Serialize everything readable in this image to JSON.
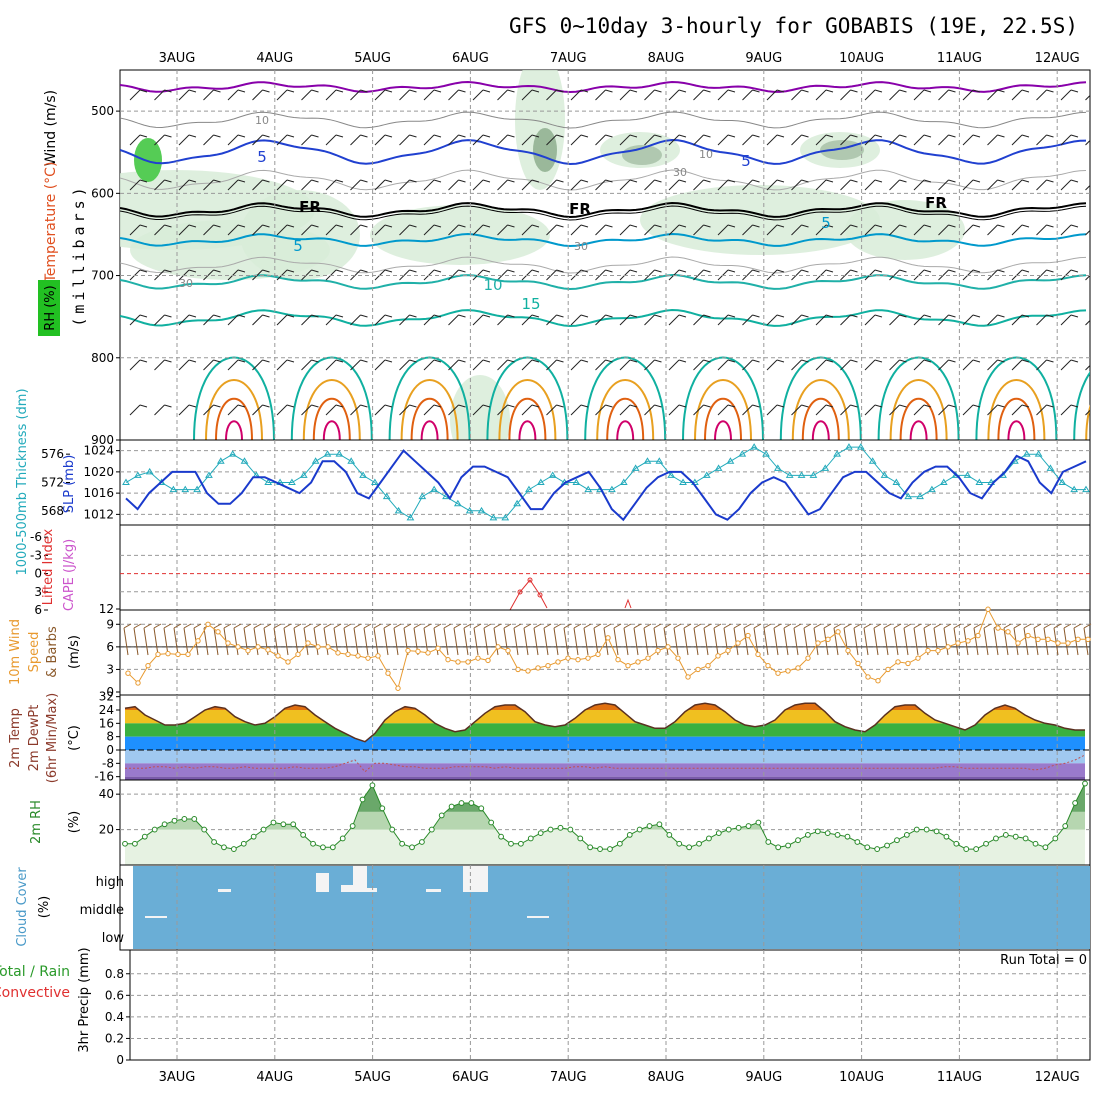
{
  "title": "GFS 0~10day 3-hourly for GOBABIS (19E, 22.5S)",
  "dates": [
    "3AUG",
    "4AUG",
    "5AUG",
    "6AUG",
    "7AUG",
    "8AUG",
    "9AUG",
    "10AUG",
    "11AUG",
    "12AUG"
  ],
  "labels": {
    "upper": {
      "rh": "RH (%)",
      "temp": "Temperature (°C)",
      "wind": "Wind (m/s)",
      "axis": "(millibars)"
    },
    "thick": {
      "thick": "1000-500mb Thickness (dm)",
      "slp": "SLP (mb)"
    },
    "li": {
      "li": "Lifted Index",
      "cape": "CAPE (J/kg)"
    },
    "wind10": {
      "l1": "10m Wind",
      "l2": "Speed",
      "l3": "& Barbs",
      "unit": "(m/s)"
    },
    "temp2m": {
      "l1": "2m Temp",
      "l2": "2m DewPt",
      "l3": "(6hr Min/Max)",
      "unit": "(°C)"
    },
    "rh2m": {
      "l1": "2m RH",
      "unit": "(%)"
    },
    "cloud": {
      "l1": "Cloud Cover",
      "unit": "(%)"
    },
    "precip": {
      "l1": "Total / Rain",
      "l2": "Convective",
      "l3": "3hr Precip (mm)"
    }
  },
  "upper_contour_labels": [
    "10",
    "5",
    "10",
    "30",
    "FR",
    "FR",
    "5",
    "30",
    "FR",
    "5",
    "10",
    "30",
    "15",
    "5"
  ],
  "colors": {
    "temp_warm": "#e8a020",
    "temp_hot": "#e06010",
    "temp_vhot": "#d0006a",
    "temp_cool": "#10b0a0",
    "temp_cold": "#0099cc",
    "temp_vcold": "#2040d0",
    "temp_vvcold": "#8800aa",
    "slp": "#1a3acc",
    "thick": "#22aabb",
    "wind": "#e89a30",
    "rh": "#2a8a2a",
    "cloud": "#6aaed6",
    "li": "#e03030"
  },
  "chart_data": [
    {
      "type": "line",
      "panel": "upper_air_cross_section",
      "yaxis": "pressure (millibars)",
      "ylim": [
        900,
        450
      ],
      "yticks": [
        500,
        600,
        700,
        800,
        900
      ],
      "isotherms_c": [
        -15,
        -10,
        -5,
        0,
        5,
        10,
        15,
        20,
        25,
        30
      ],
      "rh_shading_pct": [
        70,
        80,
        90
      ]
    },
    {
      "type": "line",
      "panel": "thickness_slp",
      "series": [
        {
          "name": "1000-500mb Thickness (dm)",
          "ylim": [
            566,
            578
          ],
          "yticks": [
            568,
            572,
            576
          ],
          "values": [
            572,
            573,
            573.5,
            572,
            571,
            571,
            571,
            573,
            575,
            576,
            575,
            573,
            572,
            572,
            572,
            573,
            575,
            576,
            576,
            575,
            573,
            572,
            570,
            568,
            567,
            570,
            571,
            570,
            569,
            568,
            568,
            567,
            567,
            569,
            571,
            572,
            573,
            572,
            572,
            571,
            571,
            571,
            572,
            574,
            575,
            575,
            573,
            572,
            572,
            573,
            574,
            575,
            576,
            577,
            576,
            574,
            573,
            573,
            573,
            574,
            576,
            577,
            577,
            575,
            573,
            572,
            570,
            570,
            571,
            572,
            573,
            573,
            572,
            572,
            573,
            575,
            576,
            576,
            574,
            572,
            571,
            571
          ]
        },
        {
          "name": "SLP (mb)",
          "ylim": [
            1010,
            1026
          ],
          "yticks": [
            1012,
            1016,
            1020,
            1024
          ],
          "values": [
            1015,
            1013,
            1016,
            1018,
            1020,
            1020,
            1020,
            1016,
            1014,
            1014,
            1016,
            1019,
            1019,
            1018,
            1017,
            1016,
            1018,
            1022,
            1022,
            1020,
            1016,
            1015,
            1018,
            1021,
            1024,
            1022,
            1020,
            1018,
            1015,
            1019,
            1021,
            1021,
            1020,
            1019,
            1016,
            1013,
            1013,
            1016,
            1018,
            1019,
            1020,
            1017,
            1013,
            1011,
            1014,
            1017,
            1019,
            1020,
            1020,
            1018,
            1015,
            1012,
            1011,
            1013,
            1016,
            1018,
            1019,
            1018,
            1015,
            1012,
            1013,
            1016,
            1019,
            1020,
            1020,
            1018,
            1016,
            1015,
            1018,
            1020,
            1021,
            1021,
            1019,
            1016,
            1015,
            1018,
            1020,
            1023,
            1022,
            1018,
            1016,
            1020,
            1021,
            1022
          ]
        }
      ]
    },
    {
      "type": "line",
      "panel": "lifted_index_cape",
      "series": [
        {
          "name": "Lifted Index",
          "ylim": [
            6,
            -8
          ],
          "yticks": [
            -6,
            -3,
            0,
            3,
            6
          ]
        },
        {
          "name": "CAPE (J/kg)",
          "yticks": [
            12
          ]
        }
      ]
    },
    {
      "type": "line",
      "panel": "wind10m",
      "series": [
        {
          "name": "10m Wind Speed (m/s)",
          "ylim": [
            0,
            10.5
          ],
          "yticks": [
            0,
            3,
            6,
            9
          ],
          "values": [
            2.5,
            1.2,
            3.5,
            5.0,
            5.1,
            5.0,
            5.0,
            6.8,
            9.0,
            8.0,
            6.5,
            6.0,
            5.5,
            6.0,
            5.6,
            4.8,
            4.0,
            5.0,
            6.5,
            6.0,
            6.0,
            5.2,
            5.0,
            4.8,
            4.5,
            4.8,
            2.5,
            0.5,
            5.5,
            5.4,
            5.2,
            5.8,
            4.3,
            4.0,
            4.0,
            4.5,
            4.2,
            6.0,
            5.5,
            3.0,
            2.8,
            3.2,
            3.5,
            4.0,
            4.5,
            4.3,
            4.5,
            5.0,
            7.2,
            4.3,
            3.5,
            4.0,
            4.5,
            5.5,
            6.0,
            4.5,
            2.0,
            3.0,
            3.5,
            4.8,
            5.5,
            6.5,
            7.5,
            5.0,
            3.5,
            2.5,
            2.8,
            3.2,
            4.5,
            6.5,
            7.0,
            8.0,
            5.5,
            3.8,
            2.0,
            1.5,
            3.0,
            4.0,
            3.8,
            4.5,
            5.5,
            5.5,
            6.0,
            6.5,
            6.8,
            7.5,
            11.0,
            8.5,
            8.0,
            6.5,
            7.5,
            7.0,
            7.0,
            6.5,
            6.5,
            7.0,
            7.0
          ]
        }
      ]
    },
    {
      "type": "area",
      "panel": "temp2m",
      "ylim": [
        -18,
        33
      ],
      "yticks": [
        -16,
        -8,
        0,
        8,
        16,
        24,
        32
      ],
      "series": [
        {
          "name": "2m Temp (°C)",
          "values": [
            25,
            26,
            21,
            18,
            15,
            15,
            16,
            20,
            24,
            26,
            25,
            20,
            17,
            15,
            16,
            20,
            25,
            27,
            26,
            21,
            17,
            13,
            10,
            7,
            5,
            10,
            18,
            23,
            26,
            25,
            21,
            16,
            13,
            11,
            12,
            17,
            22,
            26,
            27,
            27,
            23,
            17,
            15,
            14,
            15,
            19,
            24,
            27,
            28,
            27,
            22,
            17,
            15,
            13,
            13,
            17,
            23,
            27,
            28,
            27,
            23,
            18,
            15,
            14,
            15,
            18,
            24,
            27,
            28,
            28,
            23,
            17,
            14,
            12,
            11,
            15,
            21,
            26,
            27,
            27,
            22,
            18,
            16,
            14,
            12,
            15,
            21,
            25,
            27,
            25,
            21,
            18,
            16,
            15,
            13,
            12,
            12
          ]
        },
        {
          "name": "2m DewPt (°C)",
          "values": [
            -11,
            -11,
            -11,
            -10,
            -10,
            -11,
            -10,
            -11,
            -10,
            -10,
            -11,
            -11,
            -10,
            -11,
            -11,
            -11,
            -11,
            -10,
            -11,
            -11,
            -11,
            -10,
            -8,
            -6,
            -13,
            -8,
            -8,
            -9,
            -10,
            -10,
            -11,
            -11,
            -11,
            -10,
            -10,
            -10,
            -10,
            -11,
            -10,
            -11,
            -11,
            -11,
            -11,
            -11,
            -11,
            -10,
            -10,
            -11,
            -10,
            -11,
            -11,
            -11,
            -11,
            -11,
            -11,
            -11,
            -11,
            -11,
            -11,
            -11,
            -11,
            -11,
            -11,
            -11,
            -11,
            -11,
            -11,
            -11,
            -11,
            -11,
            -11,
            -11,
            -11,
            -11,
            -11,
            -11,
            -11,
            -11,
            -11,
            -11,
            -11,
            -11,
            -10,
            -10,
            -11,
            -11,
            -11,
            -11,
            -11,
            -11,
            -11,
            -12,
            -11,
            -9,
            -8,
            -6,
            -3
          ]
        }
      ]
    },
    {
      "type": "area",
      "panel": "rh2m",
      "ylim": [
        0,
        48
      ],
      "yticks": [
        20,
        40
      ],
      "series": [
        {
          "name": "2m RH (%)",
          "values": [
            12,
            12,
            16,
            20,
            23,
            25,
            26,
            26,
            20,
            13,
            10,
            9,
            12,
            16,
            20,
            24,
            23,
            23,
            17,
            12,
            10,
            10,
            15,
            22,
            37,
            45,
            32,
            20,
            12,
            10,
            13,
            20,
            28,
            33,
            35,
            35,
            32,
            24,
            16,
            12,
            12,
            15,
            18,
            20,
            21,
            20,
            15,
            10,
            9,
            9,
            12,
            17,
            20,
            22,
            23,
            17,
            12,
            10,
            12,
            15,
            18,
            20,
            21,
            22,
            24,
            13,
            10,
            11,
            14,
            17,
            19,
            18,
            17,
            16,
            13,
            10,
            9,
            11,
            14,
            17,
            20,
            20,
            19,
            16,
            12,
            9,
            9,
            12,
            15,
            17,
            16,
            15,
            12,
            10,
            15,
            22,
            35,
            46
          ]
        }
      ]
    },
    {
      "type": "bar",
      "panel": "cloud_cover",
      "categories": [
        "low",
        "middle",
        "high"
      ],
      "note": "cloud cover fraction bars per layer"
    },
    {
      "type": "bar",
      "panel": "precip",
      "ylim": [
        0,
        1.0
      ],
      "yticks": [
        0,
        0.2,
        0.4,
        0.6,
        0.8
      ],
      "run_total_label": "Run Total = 0",
      "values": []
    }
  ]
}
